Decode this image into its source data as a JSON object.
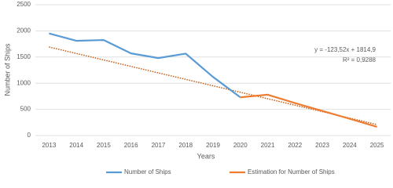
{
  "chart_data": {
    "type": "line",
    "x_label": "Years",
    "y_label": "Number of Ships",
    "categories": [
      "2013",
      "2014",
      "2015",
      "2016",
      "2017",
      "2018",
      "2019",
      "2020",
      "2021",
      "2022",
      "2023",
      "2024",
      "2025"
    ],
    "series": [
      {
        "name": "Number of Ships",
        "color": "#5b9bd5",
        "values": [
          1950,
          1810,
          1825,
          1570,
          1480,
          1565,
          1120,
          730,
          null,
          null,
          null,
          null,
          null
        ]
      },
      {
        "name": "Estimation for Number of Ships",
        "color": "#ed7d31",
        "values": [
          null,
          null,
          null,
          null,
          null,
          null,
          null,
          730,
          780,
          620,
          470,
          320,
          165
        ]
      }
    ],
    "trendline": {
      "color": "#c55a11",
      "equation": "y = -123,52x + 1814,9",
      "r_squared": "R² = 0,9288",
      "values": [
        1691.38,
        1567.86,
        1444.34,
        1320.82,
        1197.3,
        1073.78,
        950.26,
        826.74,
        703.22,
        579.7,
        456.18,
        332.66,
        209.14
      ]
    },
    "ylim": [
      0,
      2500
    ],
    "yticks": [
      0,
      500,
      1000,
      1500,
      2000,
      2500
    ],
    "grid": true
  }
}
